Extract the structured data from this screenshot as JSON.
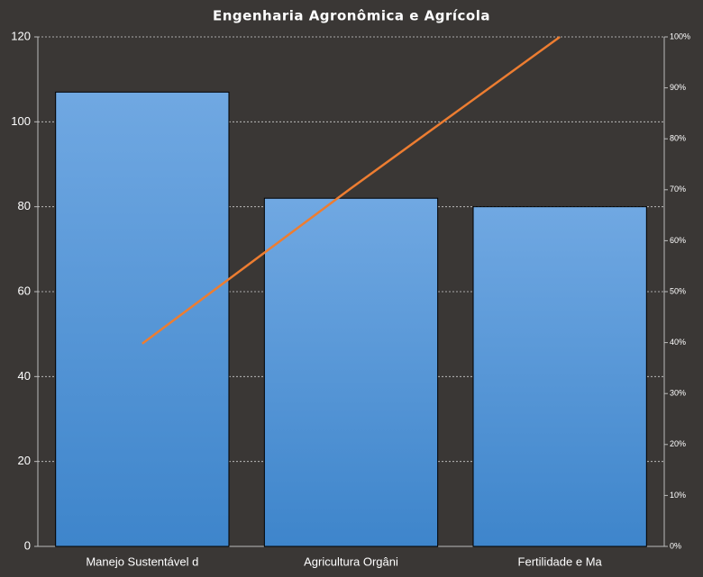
{
  "chart_data": {
    "type": "bar",
    "title": "Engenharia Agronômica e Agrícola",
    "categories": [
      "Manejo Sustentável d",
      "Agricultura Orgâni",
      "Fertilidade e Ma"
    ],
    "series": [
      {
        "color": "#5b9bd5",
        "values": [
          107,
          82,
          80
        ]
      },
      {
        "type": "line",
        "axis": "y2",
        "color": "#ed7d31",
        "values": [
          39.8,
          70.3,
          100
        ]
      }
    ],
    "ylim": [
      0,
      120
    ],
    "yticks": [
      0,
      20,
      40,
      60,
      80,
      100,
      120
    ],
    "y2lim": [
      0,
      100
    ],
    "y2ticks": [
      {
        "value": 0,
        "label": "0%"
      },
      {
        "value": 10,
        "label": "10%"
      },
      {
        "value": 20,
        "label": "20%"
      },
      {
        "value": 30,
        "label": "30%"
      },
      {
        "value": 40,
        "label": "40%"
      },
      {
        "value": 50,
        "label": "50%"
      },
      {
        "value": 60,
        "label": "60%"
      },
      {
        "value": 70,
        "label": "70%"
      },
      {
        "value": 80,
        "label": "80%"
      },
      {
        "value": 90,
        "label": "90%"
      },
      {
        "value": 100,
        "label": "100%"
      }
    ],
    "grid": true
  }
}
